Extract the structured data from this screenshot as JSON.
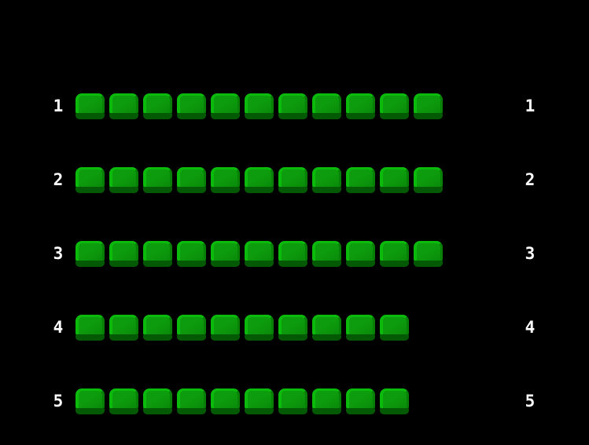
{
  "colors": {
    "background": "#000000",
    "label_text": "#ffffff",
    "pearl_highlight": "#0bbb0b",
    "pearl_face": "#0d9c0d",
    "pearl_face_dark": "#0a8a0a",
    "pearl_right_edge": "#088008",
    "pearl_bottom": "#045a04"
  },
  "board": {
    "rows": [
      {
        "label": "1",
        "count": 11
      },
      {
        "label": "2",
        "count": 11
      },
      {
        "label": "3",
        "count": 11
      },
      {
        "label": "4",
        "count": 10
      },
      {
        "label": "5",
        "count": 10
      }
    ]
  }
}
